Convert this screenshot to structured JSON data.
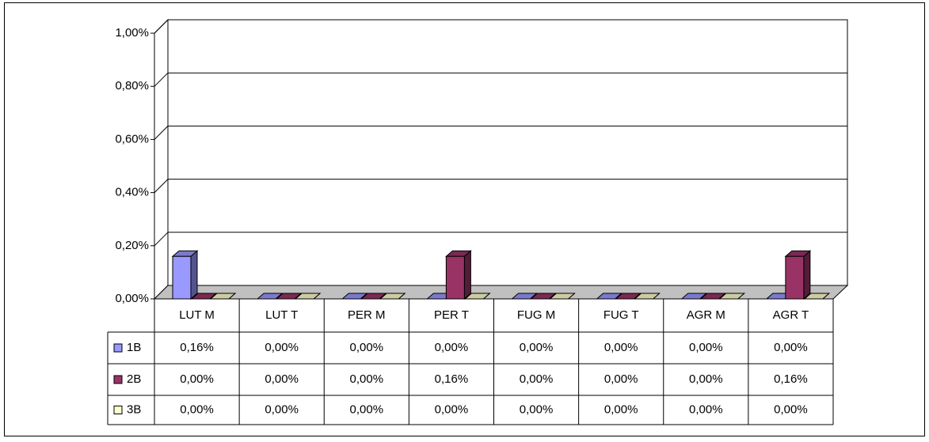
{
  "chart_data": {
    "type": "bar3d",
    "categories": [
      "LUT M",
      "LUT T",
      "PER M",
      "PER T",
      "FUG M",
      "FUG T",
      "AGR M",
      "AGR T"
    ],
    "series": [
      {
        "name": "1B",
        "color": "#9999ff",
        "values": [
          0.16,
          0,
          0,
          0,
          0,
          0,
          0,
          0
        ],
        "value_labels": [
          "0,16%",
          "0,00%",
          "0,00%",
          "0,00%",
          "0,00%",
          "0,00%",
          "0,00%",
          "0,00%"
        ]
      },
      {
        "name": "2B",
        "color": "#993366",
        "values": [
          0,
          0,
          0,
          0.16,
          0,
          0,
          0,
          0.16
        ],
        "value_labels": [
          "0,00%",
          "0,00%",
          "0,00%",
          "0,16%",
          "0,00%",
          "0,00%",
          "0,00%",
          "0,16%"
        ]
      },
      {
        "name": "3B",
        "color": "#ffffcc",
        "values": [
          0,
          0,
          0,
          0,
          0,
          0,
          0,
          0
        ],
        "value_labels": [
          "0,00%",
          "0,00%",
          "0,00%",
          "0,00%",
          "0,00%",
          "0,00%",
          "0,00%",
          "0,00%"
        ]
      }
    ],
    "ylim": [
      0,
      1
    ],
    "yticks": [
      {
        "value": 0,
        "label": "0,00%"
      },
      {
        "value": 0.2,
        "label": "0,20%"
      },
      {
        "value": 0.4,
        "label": "0,40%"
      },
      {
        "value": 0.6,
        "label": "0,60%"
      },
      {
        "value": 0.8,
        "label": "0,80%"
      },
      {
        "value": 1,
        "label": "1,00%"
      }
    ],
    "grid": true
  }
}
